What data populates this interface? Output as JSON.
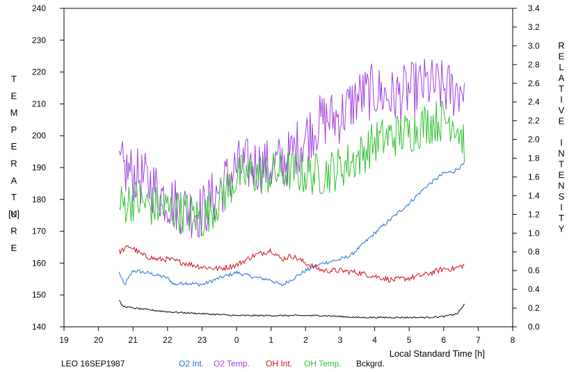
{
  "chart_data": {
    "type": "line",
    "xlabel": "Local Standard Time [h]",
    "ylabel_left_letters": [
      "T",
      "E",
      "M",
      "P",
      "E",
      "R",
      "A",
      "T",
      "U",
      "R",
      "E"
    ],
    "ylabel_left_unit": "[K]",
    "ylabel_right_letters": [
      "R",
      "E",
      "L",
      "A",
      "T",
      "I",
      "V",
      "E",
      "",
      "I",
      "N",
      "T",
      "E",
      "N",
      "S",
      "I",
      "T",
      "Y"
    ],
    "x_ticks": [
      "19",
      "20",
      "21",
      "22",
      "23",
      "0",
      "1",
      "2",
      "3",
      "4",
      "5",
      "6",
      "7",
      "8"
    ],
    "x_range_hours": [
      19,
      32
    ],
    "y_left_ticks": [
      "140",
      "150",
      "160",
      "170",
      "180",
      "190",
      "200",
      "210",
      "220",
      "230",
      "240"
    ],
    "y_left_range": [
      140,
      240
    ],
    "y_right_ticks": [
      "0.0",
      "0.2",
      "0.4",
      "0.6",
      "0.8",
      "1.0",
      "1.2",
      "1.4",
      "1.6",
      "1.8",
      "2.0",
      "2.2",
      "2.4",
      "2.6",
      "2.8",
      "3.0",
      "3.2",
      "3.4"
    ],
    "y_right_range": [
      0,
      3.4
    ],
    "grid": false,
    "footer_label": "LEO 16SEP1987",
    "series": [
      {
        "name": "O2 Int.",
        "axis": "right",
        "color": "#1a6fd6",
        "x": [
          20.6,
          20.75,
          21.0,
          21.5,
          22.0,
          22.2,
          22.5,
          23.0,
          23.5,
          0.0,
          0.5,
          1.0,
          1.3,
          1.7,
          2.0,
          2.5,
          3.0,
          3.3,
          3.6,
          4.0,
          4.5,
          5.0,
          5.5,
          6.0,
          6.3,
          6.6
        ],
        "y": [
          0.58,
          0.44,
          0.6,
          0.57,
          0.52,
          0.45,
          0.47,
          0.45,
          0.52,
          0.58,
          0.53,
          0.5,
          0.44,
          0.53,
          0.6,
          0.68,
          0.72,
          0.76,
          0.86,
          1.0,
          1.16,
          1.32,
          1.5,
          1.64,
          1.66,
          1.74
        ]
      },
      {
        "name": "O2 Temp.",
        "axis": "left",
        "color": "#a040e0",
        "x": [
          20.6,
          21.0,
          21.5,
          22.0,
          22.5,
          23.0,
          23.5,
          0.0,
          0.5,
          1.0,
          1.5,
          2.0,
          2.5,
          3.0,
          3.5,
          4.0,
          4.5,
          5.0,
          5.5,
          6.0,
          6.3,
          6.6
        ],
        "y": [
          190,
          188,
          185,
          180,
          177,
          176,
          183,
          190,
          191,
          190,
          193,
          200,
          205,
          206,
          212,
          214,
          212,
          214,
          216,
          215,
          214,
          216
        ]
      },
      {
        "name": "OH Int.",
        "axis": "right",
        "color": "#d01010",
        "x": [
          20.6,
          20.9,
          21.3,
          21.7,
          22.0,
          22.5,
          23.0,
          23.5,
          0.0,
          0.5,
          1.0,
          1.3,
          1.6,
          2.0,
          2.5,
          3.0,
          3.5,
          4.0,
          4.5,
          5.0,
          5.5,
          6.0,
          6.3,
          6.6
        ],
        "y": [
          0.8,
          0.86,
          0.76,
          0.72,
          0.72,
          0.68,
          0.64,
          0.62,
          0.66,
          0.76,
          0.82,
          0.72,
          0.76,
          0.68,
          0.6,
          0.6,
          0.58,
          0.54,
          0.5,
          0.52,
          0.56,
          0.62,
          0.62,
          0.66
        ]
      },
      {
        "name": "OH Temp.",
        "axis": "left",
        "color": "#30c030",
        "x": [
          20.6,
          21.0,
          21.5,
          22.0,
          22.5,
          23.0,
          23.5,
          0.0,
          0.5,
          1.0,
          1.5,
          2.0,
          2.5,
          3.0,
          3.5,
          4.0,
          4.5,
          5.0,
          5.5,
          6.0,
          6.3,
          6.6
        ],
        "y": [
          178,
          180,
          178,
          177,
          176,
          174,
          180,
          187,
          188,
          188,
          189,
          188,
          188,
          190,
          193,
          198,
          200,
          201,
          204,
          205,
          205,
          198
        ]
      },
      {
        "name": "Bckgrd.",
        "axis": "right",
        "color": "#000000",
        "x": [
          20.6,
          20.7,
          21.0,
          21.5,
          22.0,
          22.5,
          23.0,
          23.5,
          0.0,
          0.5,
          1.0,
          1.5,
          2.0,
          2.5,
          3.0,
          3.5,
          4.0,
          4.5,
          5.0,
          5.5,
          6.0,
          6.4,
          6.6
        ],
        "y": [
          0.28,
          0.22,
          0.2,
          0.18,
          0.16,
          0.15,
          0.14,
          0.13,
          0.12,
          0.12,
          0.12,
          0.12,
          0.12,
          0.12,
          0.11,
          0.1,
          0.1,
          0.1,
          0.1,
          0.1,
          0.11,
          0.14,
          0.24
        ]
      }
    ]
  }
}
